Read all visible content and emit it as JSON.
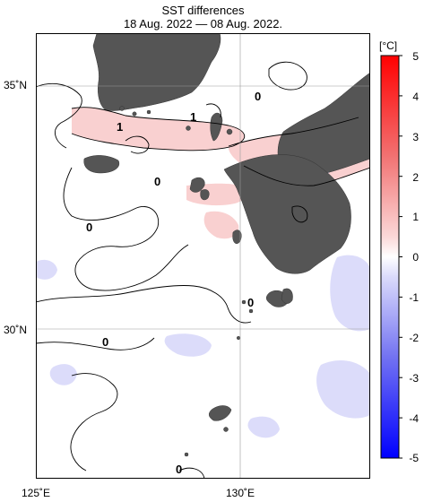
{
  "title": "SST differences",
  "subtitle": "18 Aug. 2022 — 08 Aug. 2022.",
  "map": {
    "lat_labels": [
      "35˚N",
      "30˚N"
    ],
    "lon_labels": [
      "125˚E",
      "130˚E"
    ],
    "extent": {
      "lon": [
        124.97,
        132.58
      ],
      "lat": [
        26.9,
        35.97
      ]
    },
    "contour_labels": [
      "0",
      "1",
      "1",
      "0",
      "0",
      "0",
      "0",
      "0"
    ],
    "colors": {
      "land": "#555555",
      "ocean": "#ffffff",
      "grid": "#999999"
    }
  },
  "colorbar": {
    "unit": "[°C]",
    "min": -5,
    "max": 5,
    "ticks": [
      "5",
      "4",
      "3",
      "2",
      "1",
      "0",
      "-1",
      "-2",
      "-3",
      "-4",
      "-5"
    ],
    "colors": {
      "warm_max": "#ff0000",
      "cool_max": "#0000ff",
      "neutral": "#ffffff"
    }
  }
}
